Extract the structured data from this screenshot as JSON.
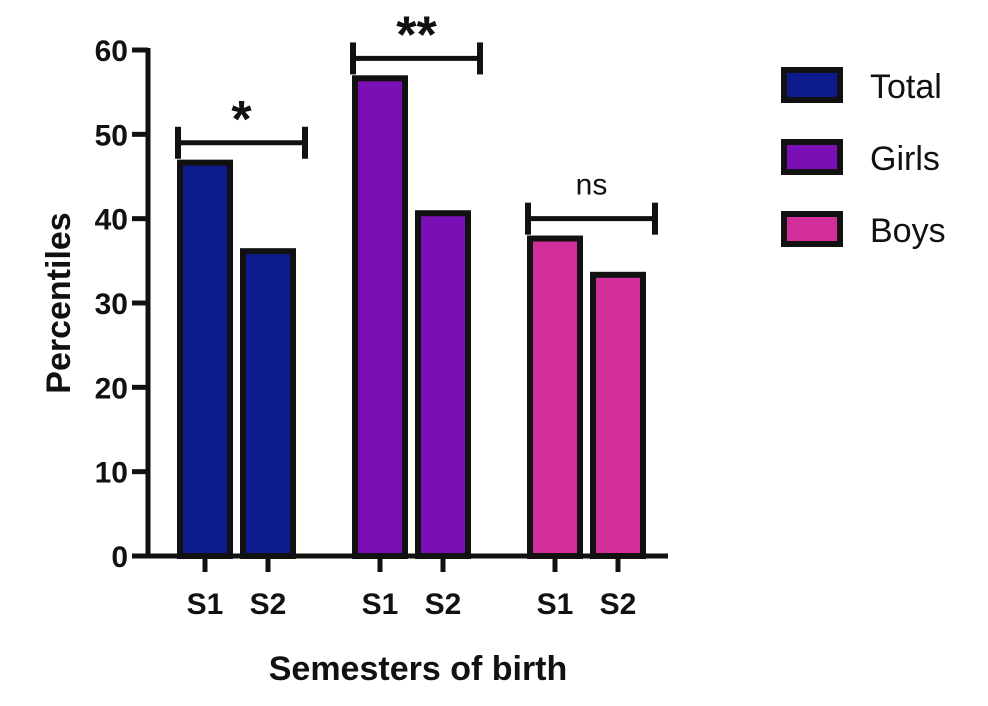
{
  "chart_data": {
    "type": "bar",
    "title": "",
    "xlabel": "Semesters of birth",
    "ylabel": "Percentiles",
    "ylim": [
      0,
      60
    ],
    "yticks": [
      0,
      10,
      20,
      30,
      40,
      50,
      60
    ],
    "groups": [
      {
        "name": "Total",
        "color": "#0d1a8c",
        "categories": [
          "S1",
          "S2"
        ],
        "values": [
          47,
          36.5
        ]
      },
      {
        "name": "Girls",
        "color": "#7a0fb5",
        "categories": [
          "S1",
          "S2"
        ],
        "values": [
          57,
          41
        ]
      },
      {
        "name": "Boys",
        "color": "#d12e99",
        "categories": [
          "S1",
          "S2"
        ],
        "values": [
          38,
          33.7
        ]
      }
    ],
    "significance": [
      {
        "group": "Total",
        "label": "*",
        "y": 49
      },
      {
        "group": "Girls",
        "label": "**",
        "y": 59
      },
      {
        "group": "Boys",
        "label": "ns",
        "y": 40
      }
    ],
    "legend": {
      "position": "top-right",
      "entries": [
        "Total",
        "Girls",
        "Boys"
      ]
    }
  }
}
